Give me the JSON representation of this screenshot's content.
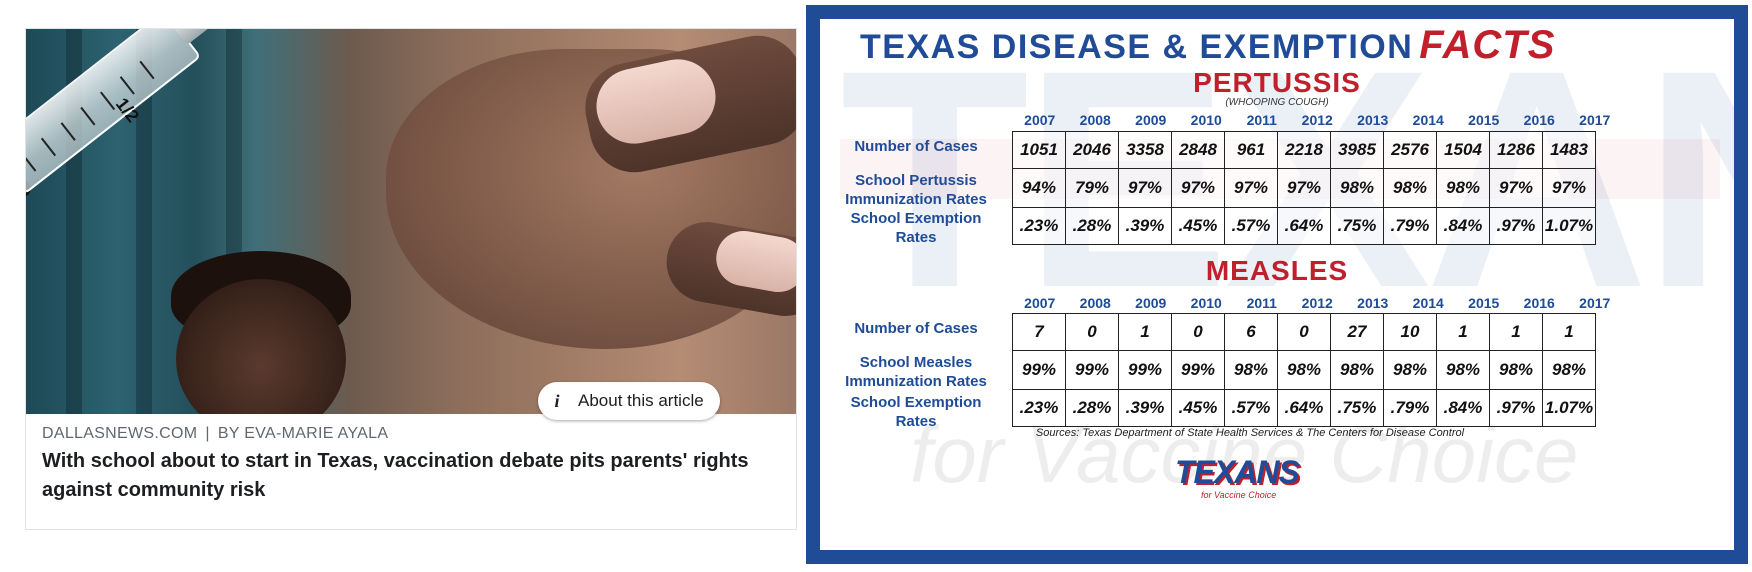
{
  "article": {
    "source": "DALLASNEWS.COM",
    "separator": "|",
    "byline": "BY EVA-MARIE AYALA",
    "headline": "With school about to start in Texas, vaccination debate pits parents' rights against community risk",
    "about_label": "About this article",
    "syringe_marking": "1/2"
  },
  "infographic": {
    "title_main": "TEXAS DISEASE & EXEMPTION",
    "title_accent": "FACTS",
    "watermark": "TEXANS",
    "watermark_sub": "for Vaccine Choice",
    "pertussis": {
      "title": "PERTUSSIS",
      "subtitle": "(WHOOPING COUGH)",
      "years": [
        "2007",
        "2008",
        "2009",
        "2010",
        "2011",
        "2012",
        "2013",
        "2014",
        "2015",
        "2016",
        "2017"
      ],
      "rows": [
        {
          "label_lines": [
            "Number of Cases"
          ],
          "values": [
            "1051",
            "2046",
            "3358",
            "2848",
            "961",
            "2218",
            "3985",
            "2576",
            "1504",
            "1286",
            "1483"
          ]
        },
        {
          "label_lines": [
            "School Pertussis",
            "Immunization Rates"
          ],
          "values": [
            "94%",
            "79%",
            "97%",
            "97%",
            "97%",
            "97%",
            "98%",
            "98%",
            "98%",
            "97%",
            "97%"
          ]
        },
        {
          "label_lines": [
            "School Exemption",
            "Rates"
          ],
          "values": [
            ".23%",
            ".28%",
            ".39%",
            ".45%",
            ".57%",
            ".64%",
            ".75%",
            ".79%",
            ".84%",
            ".97%",
            "1.07%"
          ]
        }
      ]
    },
    "measles": {
      "title": "MEASLES",
      "years": [
        "2007",
        "2008",
        "2009",
        "2010",
        "2011",
        "2012",
        "2013",
        "2014",
        "2015",
        "2016",
        "2017"
      ],
      "rows": [
        {
          "label_lines": [
            "Number of Cases"
          ],
          "values": [
            "7",
            "0",
            "1",
            "0",
            "6",
            "0",
            "27",
            "10",
            "1",
            "1",
            "1"
          ]
        },
        {
          "label_lines": [
            "School Measles",
            "Immunization Rates"
          ],
          "values": [
            "99%",
            "99%",
            "99%",
            "99%",
            "98%",
            "98%",
            "98%",
            "98%",
            "98%",
            "98%",
            "98%"
          ]
        },
        {
          "label_lines": [
            "School Exemption",
            "Rates"
          ],
          "values": [
            ".23%",
            ".28%",
            ".39%",
            ".45%",
            ".57%",
            ".64%",
            ".75%",
            ".79%",
            ".84%",
            ".97%",
            "1.07%"
          ]
        }
      ]
    },
    "sources": "Sources: Texas Department of State Health Services & The Centers for Disease Control",
    "logo_text": "TEXANS",
    "logo_sub": "for Vaccine Choice"
  },
  "colors": {
    "brand_blue": "#1f4b97",
    "accent_red": "#c0202c"
  }
}
